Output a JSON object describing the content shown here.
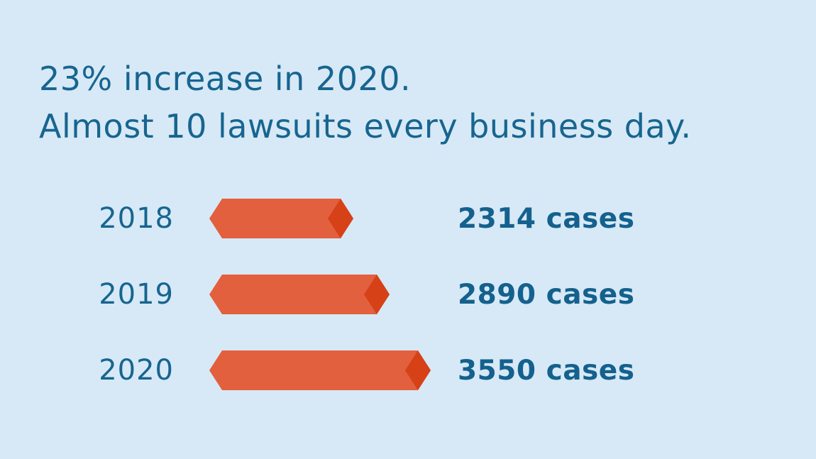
{
  "title": {
    "line1": "23% increase in 2020.",
    "line2": "Almost 10 lawsuits every business day."
  },
  "colors": {
    "background": "#d7e9f6",
    "title_text": "#176590",
    "label_text": "#176590",
    "value_text": "#14618e",
    "bar_fill": "#e2603e",
    "bar_tip": "#d64117"
  },
  "chart_data": {
    "type": "bar",
    "orientation": "horizontal",
    "title": "23% increase in 2020. Almost 10 lawsuits every business day.",
    "categories": [
      "2018",
      "2019",
      "2020"
    ],
    "values": [
      2314,
      2890,
      3550
    ],
    "unit_suffix": "cases",
    "value_labels": [
      "2314 cases",
      "2890 cases",
      "3550 cases"
    ],
    "xlabel": "",
    "ylabel": "",
    "xlim": [
      0,
      3550
    ],
    "grid": false,
    "legend": false,
    "bar_style": "pointed-ribbon-with-dark-arrow-tip"
  }
}
